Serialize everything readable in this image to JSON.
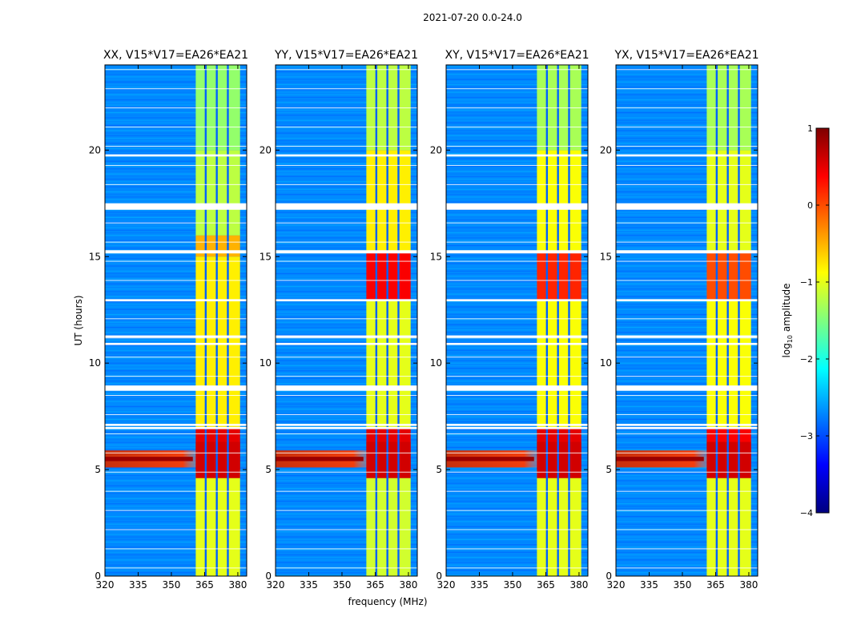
{
  "chart_data": {
    "type": "heatmap",
    "title": "2021-07-20 0.0-24.0",
    "xlabel": "frequency (MHz)",
    "ylabel": "UT (hours)",
    "xlim": [
      320,
      384
    ],
    "ylim": [
      0,
      24
    ],
    "x_ticks": [
      320,
      335,
      350,
      365,
      380
    ],
    "y_ticks": [
      0,
      5,
      10,
      15,
      20
    ],
    "colorbar": {
      "label_prefix": "log",
      "label_sub": "10",
      "label_suffix": " amplitude",
      "range": [
        -4,
        1
      ],
      "ticks": [
        "1",
        "0",
        "−1",
        "−2",
        "−3",
        "−4"
      ],
      "colormap": [
        "#00007f",
        "#0000ff",
        "#007fff",
        "#00ffff",
        "#7fff7f",
        "#ffff00",
        "#ff7f00",
        "#ff0000",
        "#7f0000"
      ]
    },
    "panels": [
      {
        "title": "XX, V15*V17=EA26*EA21"
      },
      {
        "title": "YY, V15*V17=EA26*EA21"
      },
      {
        "title": "XY, V15*V17=EA26*EA21"
      },
      {
        "title": "YX, V15*V17=EA26*EA21"
      }
    ],
    "background_level": -2.7,
    "rfi_band_mhz": [
      361,
      381
    ],
    "rfi_channel_gaps_mhz": [
      365.5,
      370.5,
      375.5
    ],
    "broadband_event_hours": [
      5.1,
      5.9
    ],
    "flagged_hours": [
      [
        19.7,
        19.8
      ],
      [
        17.2,
        17.5
      ],
      [
        15.15,
        15.3
      ],
      [
        12.9,
        13.0
      ],
      [
        11.2,
        11.3
      ],
      [
        10.85,
        10.95
      ],
      [
        8.7,
        8.95
      ],
      [
        7.05,
        7.15
      ],
      [
        6.9,
        7.0
      ]
    ],
    "rfi_strength_by_panel": [
      [
        [
          0,
          5,
          -1.0
        ],
        [
          5,
          7,
          0.5
        ],
        [
          7,
          15,
          -0.8
        ],
        [
          15,
          16,
          -0.5
        ],
        [
          16,
          20,
          -1.2
        ],
        [
          20,
          24,
          -1.4
        ]
      ],
      [
        [
          0,
          5,
          -1.1
        ],
        [
          5,
          7,
          0.5
        ],
        [
          7,
          13,
          -1.0
        ],
        [
          13,
          15.2,
          0.4
        ],
        [
          15.2,
          20,
          -0.8
        ],
        [
          20,
          24,
          -1.2
        ]
      ],
      [
        [
          0,
          5,
          -1.0
        ],
        [
          5,
          7,
          0.5
        ],
        [
          7,
          13,
          -0.9
        ],
        [
          13,
          15.2,
          0.2
        ],
        [
          15.2,
          20,
          -0.9
        ],
        [
          20,
          24,
          -1.3
        ]
      ],
      [
        [
          0,
          5,
          -1.0
        ],
        [
          5,
          7,
          0.4
        ],
        [
          7,
          13,
          -0.9
        ],
        [
          13,
          15.2,
          0.0
        ],
        [
          15.2,
          20,
          -1.0
        ],
        [
          20,
          24,
          -1.3
        ]
      ]
    ]
  }
}
